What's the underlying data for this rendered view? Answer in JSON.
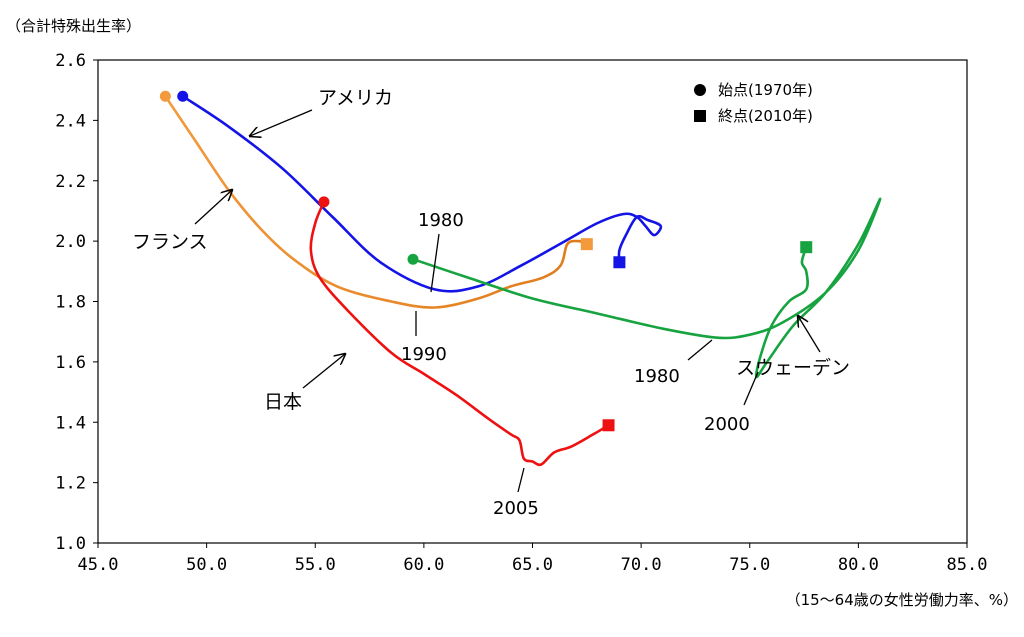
{
  "chart_data": {
    "type": "line",
    "ylabel": "（合計特殊出生率）",
    "xlabel": "（15〜64歳の女性労働力率、%）",
    "xlim": [
      45,
      85
    ],
    "ylim": [
      1.0,
      2.6
    ],
    "x_ticks": [
      "45.0",
      "50.0",
      "55.0",
      "60.0",
      "65.0",
      "70.0",
      "75.0",
      "80.0",
      "85.0"
    ],
    "y_ticks": [
      "1.0",
      "1.2",
      "1.4",
      "1.6",
      "1.8",
      "2.0",
      "2.2",
      "2.4",
      "2.6"
    ],
    "grid": false,
    "legend_position": "top-right",
    "legend": [
      {
        "marker": "circle",
        "label": "始点(1970年)"
      },
      {
        "marker": "square",
        "label": "終点(2010年)"
      }
    ],
    "series": [
      {
        "name": "アメリカ",
        "color": "#1414e6",
        "points": [
          [
            48.9,
            2.48
          ],
          [
            51.0,
            2.38
          ],
          [
            53.5,
            2.24
          ],
          [
            55.8,
            2.08
          ],
          [
            58.0,
            1.93
          ],
          [
            60.5,
            1.84
          ],
          [
            62.5,
            1.85
          ],
          [
            64.5,
            1.92
          ],
          [
            66.5,
            2.0
          ],
          [
            68.0,
            2.06
          ],
          [
            69.2,
            2.09
          ],
          [
            69.8,
            2.08
          ],
          [
            70.2,
            2.05
          ],
          [
            70.6,
            2.02
          ],
          [
            70.9,
            2.05
          ],
          [
            70.3,
            2.07
          ],
          [
            69.8,
            2.08
          ],
          [
            69.3,
            2.02
          ],
          [
            69.0,
            1.97
          ],
          [
            69.0,
            1.93
          ]
        ]
      },
      {
        "name": "フランス",
        "color": "#f29a3c",
        "segment_colors": [
          "#f29a3c",
          "#e07a1a"
        ],
        "points": [
          [
            48.1,
            2.48
          ],
          [
            49.5,
            2.33
          ],
          [
            51.0,
            2.17
          ],
          [
            52.5,
            2.04
          ],
          [
            54.0,
            1.94
          ],
          [
            56.0,
            1.85
          ],
          [
            58.5,
            1.8
          ],
          [
            60.5,
            1.78
          ],
          [
            62.5,
            1.81
          ],
          [
            64.0,
            1.85
          ],
          [
            65.5,
            1.88
          ],
          [
            66.3,
            1.92
          ],
          [
            66.6,
            1.99
          ],
          [
            67.1,
            2.0
          ],
          [
            67.5,
            1.99
          ]
        ]
      },
      {
        "name": "日本",
        "color": "#ee1111",
        "points": [
          [
            55.4,
            2.13
          ],
          [
            55.0,
            2.06
          ],
          [
            54.8,
            1.97
          ],
          [
            55.2,
            1.88
          ],
          [
            56.5,
            1.77
          ],
          [
            58.5,
            1.63
          ],
          [
            60.0,
            1.56
          ],
          [
            61.5,
            1.49
          ],
          [
            63.0,
            1.41
          ],
          [
            64.0,
            1.36
          ],
          [
            64.4,
            1.34
          ],
          [
            64.6,
            1.28
          ],
          [
            65.0,
            1.27
          ],
          [
            65.4,
            1.26
          ],
          [
            66.0,
            1.3
          ],
          [
            66.8,
            1.32
          ],
          [
            67.8,
            1.36
          ],
          [
            68.5,
            1.39
          ]
        ]
      },
      {
        "name": "スウェーデン",
        "color": "#17a340",
        "points": [
          [
            59.5,
            1.94
          ],
          [
            62.0,
            1.88
          ],
          [
            65.0,
            1.81
          ],
          [
            68.0,
            1.76
          ],
          [
            71.0,
            1.71
          ],
          [
            73.5,
            1.68
          ],
          [
            75.0,
            1.69
          ],
          [
            76.5,
            1.73
          ],
          [
            78.5,
            1.83
          ],
          [
            80.0,
            1.97
          ],
          [
            81.0,
            2.14
          ],
          [
            80.0,
            1.99
          ],
          [
            78.5,
            1.83
          ],
          [
            77.0,
            1.72
          ],
          [
            75.8,
            1.6
          ],
          [
            75.3,
            1.55
          ],
          [
            75.5,
            1.62
          ],
          [
            76.0,
            1.72
          ],
          [
            76.8,
            1.8
          ],
          [
            77.6,
            1.84
          ],
          [
            77.6,
            1.9
          ],
          [
            77.4,
            1.93
          ],
          [
            77.6,
            1.98
          ]
        ]
      }
    ],
    "annotations": [
      {
        "text": "アメリカ",
        "x": 54.5,
        "y": 2.43,
        "series": "アメリカ"
      },
      {
        "text": "フランス",
        "x": 48.0,
        "y": 2.0,
        "series": "フランス"
      },
      {
        "text": "日本",
        "x": 53.5,
        "y": 1.47,
        "series": "日本"
      },
      {
        "text": "スウェーデン",
        "x": 79.5,
        "y": 1.59,
        "series": "スウェーデン"
      },
      {
        "text": "1980",
        "x": 60.4,
        "y": 2.06,
        "series": "アメリカ"
      },
      {
        "text": "1990",
        "x": 60.0,
        "y": 1.63,
        "series": "フランス"
      },
      {
        "text": "2005",
        "x": 64.2,
        "y": 1.11,
        "series": "日本"
      },
      {
        "text": "1980",
        "x": 71.1,
        "y": 1.59,
        "series": "スウェーデン"
      },
      {
        "text": "2000",
        "x": 75.4,
        "y": 1.35,
        "series": "スウェーデン"
      }
    ]
  }
}
